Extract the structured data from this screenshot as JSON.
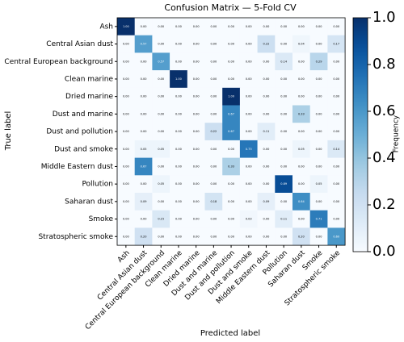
{
  "chart_data": {
    "type": "heatmap",
    "title": "Confusion Matrix — 5-Fold CV",
    "xlabel": "Predicted label",
    "ylabel": "True label",
    "colorbar_label": "Frequency",
    "cmap": "Blues",
    "categories": [
      "Ash",
      "Central Asian dust",
      "Central European background",
      "Clean marine",
      "Dried marine",
      "Dust and marine",
      "Dust and pollution",
      "Dust and smoke",
      "Middle Eastern dust",
      "Pollution",
      "Saharan dust",
      "Smoke",
      "Stratospheric smoke"
    ],
    "values": [
      [
        1.0,
        0,
        0,
        0,
        0,
        0,
        0,
        0,
        0,
        0,
        0,
        0,
        0
      ],
      [
        0,
        0.57,
        0,
        0,
        0,
        0,
        0,
        0,
        0.22,
        0,
        0.04,
        0,
        0.17
      ],
      [
        0,
        0,
        0.57,
        0,
        0,
        0,
        0,
        0,
        0,
        0.14,
        0,
        0.29,
        0
      ],
      [
        0,
        0,
        0,
        1.0,
        0,
        0,
        0,
        0,
        0,
        0,
        0,
        0,
        0
      ],
      [
        0,
        0,
        0,
        0,
        0,
        0,
        1.0,
        0,
        0,
        0,
        0,
        0,
        0
      ],
      [
        0,
        0,
        0,
        0,
        0,
        0,
        0.67,
        0,
        0,
        0,
        0.33,
        0,
        0
      ],
      [
        0,
        0,
        0,
        0,
        0,
        0.22,
        0.67,
        0,
        0.11,
        0,
        0,
        0,
        0
      ],
      [
        0,
        0.05,
        0.05,
        0,
        0,
        0,
        0,
        0.73,
        0,
        0,
        0.05,
        0,
        0.14
      ],
      [
        0,
        0.67,
        0,
        0,
        0,
        0,
        0.33,
        0,
        0,
        0,
        0,
        0,
        0
      ],
      [
        0,
        0,
        0.05,
        0,
        0,
        0,
        0,
        0,
        0,
        0.89,
        0,
        0.05,
        0
      ],
      [
        0,
        0.09,
        0,
        0,
        0,
        0.18,
        0,
        0,
        0.09,
        0,
        0.64,
        0,
        0
      ],
      [
        0,
        0,
        0.15,
        0,
        0,
        0,
        0,
        0.03,
        0,
        0.11,
        0,
        0.71,
        0
      ],
      [
        0,
        0.2,
        0,
        0,
        0,
        0,
        0,
        0,
        0,
        0,
        0.2,
        0,
        0.6
      ]
    ],
    "value_labels": [
      [
        "1.00",
        "0.00",
        "0.00",
        "0.00",
        "0.00",
        "0.00",
        "0.00",
        "0.00",
        "0.00",
        "0.00",
        "0.00",
        "0.00",
        "0.00"
      ],
      [
        "0.00",
        "0.57",
        "0.00",
        "0.00",
        "0.00",
        "0.00",
        "0.00",
        "0.00",
        "0.22",
        "0.00",
        "0.04",
        "0.00",
        "0.17"
      ],
      [
        "0.00",
        "0.00",
        "0.57",
        "0.00",
        "0.00",
        "0.00",
        "0.00",
        "0.00",
        "0.00",
        "0.14",
        "0.00",
        "0.29",
        "0.00"
      ],
      [
        "0.00",
        "0.00",
        "0.00",
        "1.00",
        "0.00",
        "0.00",
        "0.00",
        "0.00",
        "0.00",
        "0.00",
        "0.00",
        "0.00",
        "0.00"
      ],
      [
        "0.00",
        "0.00",
        "0.00",
        "0.00",
        "0.00",
        "0.00",
        "1.00",
        "0.00",
        "0.00",
        "0.00",
        "0.00",
        "0.00",
        "0.00"
      ],
      [
        "0.00",
        "0.00",
        "0.00",
        "0.00",
        "0.00",
        "0.00",
        "0.67",
        "0.00",
        "0.00",
        "0.00",
        "0.33",
        "0.00",
        "0.00"
      ],
      [
        "0.00",
        "0.00",
        "0.00",
        "0.00",
        "0.00",
        "0.22",
        "0.67",
        "0.00",
        "0.11",
        "0.00",
        "0.00",
        "0.00",
        "0.00"
      ],
      [
        "0.00",
        "0.05",
        "0.05",
        "0.00",
        "0.00",
        "0.00",
        "0.00",
        "0.73",
        "0.00",
        "0.00",
        "0.05",
        "0.00",
        "0.14"
      ],
      [
        "0.00",
        "0.67",
        "0.00",
        "0.00",
        "0.00",
        "0.00",
        "0.33",
        "0.00",
        "0.00",
        "0.00",
        "0.00",
        "0.00",
        "0.00"
      ],
      [
        "0.00",
        "0.00",
        "0.05",
        "0.00",
        "0.00",
        "0.00",
        "0.00",
        "0.00",
        "0.00",
        "0.89",
        "0.00",
        "0.05",
        "0.00"
      ],
      [
        "0.00",
        "0.09",
        "0.00",
        "0.00",
        "0.00",
        "0.18",
        "0.00",
        "0.00",
        "0.09",
        "0.00",
        "0.64",
        "0.00",
        "0.00"
      ],
      [
        "0.00",
        "0.00",
        "0.15",
        "0.00",
        "0.00",
        "0.00",
        "0.00",
        "0.03",
        "0.00",
        "0.11",
        "0.00",
        "0.71",
        "0.00"
      ],
      [
        "0.00",
        "0.20",
        "0.00",
        "0.00",
        "0.00",
        "0.00",
        "0.00",
        "0.00",
        "0.00",
        "0.00",
        "0.20",
        "0.00",
        "0.60"
      ]
    ],
    "clim": [
      0,
      1
    ],
    "cticks": [
      {
        "value": 0,
        "label": "0.0"
      },
      {
        "value": 0.2,
        "label": "0.2"
      },
      {
        "value": 0.4,
        "label": "0.4"
      },
      {
        "value": 0.6,
        "label": "0.6"
      },
      {
        "value": 0.8,
        "label": "0.8"
      },
      {
        "value": 1,
        "label": "1.0"
      }
    ]
  }
}
